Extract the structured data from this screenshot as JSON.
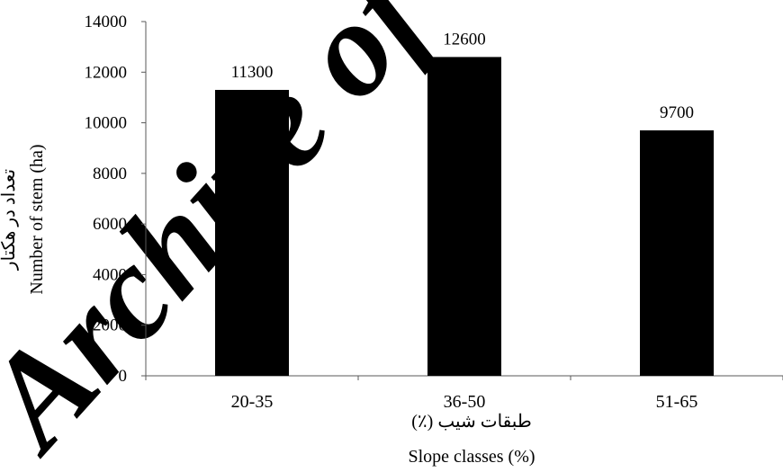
{
  "chart_data": {
    "type": "bar",
    "categories": [
      "20-35",
      "36-50",
      "51-65"
    ],
    "values": [
      11300,
      12600,
      9700
    ],
    "data_labels": [
      "11300",
      "12600",
      "9700"
    ],
    "ylim": [
      0,
      14000
    ],
    "yticks": [
      "0",
      "2000",
      "4000",
      "6000",
      "8000",
      "10000",
      "12000",
      "14000"
    ],
    "xlabel_fa": "طبقات شیب (٪)",
    "xlabel_en": "Slope classes (%)",
    "ylabel_fa": "تعداد در هکتار",
    "ylabel_en": "Number of stem (ha)",
    "grid": false,
    "legend": "none",
    "bar_color": "#000000"
  },
  "watermark": {
    "text": "Archive of SID",
    "color": "#eeeeee"
  }
}
